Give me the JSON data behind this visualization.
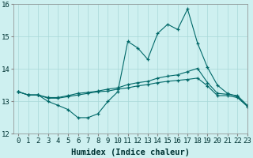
{
  "xlabel": "Humidex (Indice chaleur)",
  "ylabel": "",
  "xlim": [
    -0.5,
    23
  ],
  "ylim": [
    12,
    16
  ],
  "yticks": [
    12,
    13,
    14,
    15,
    16
  ],
  "xticks": [
    0,
    1,
    2,
    3,
    4,
    5,
    6,
    7,
    8,
    9,
    10,
    11,
    12,
    13,
    14,
    15,
    16,
    17,
    18,
    19,
    20,
    21,
    22,
    23
  ],
  "xtick_labels": [
    "0",
    "1",
    "2",
    "3",
    "4",
    "5",
    "6",
    "7",
    "8",
    "9",
    "10",
    "11",
    "12",
    "13",
    "14",
    "15",
    "16",
    "17",
    "18",
    "19",
    "20",
    "21",
    "22",
    "23"
  ],
  "background_color": "#cef0f0",
  "grid_color": "#a8d8d8",
  "line_color": "#006868",
  "line1": [
    13.3,
    13.2,
    13.2,
    13.0,
    12.88,
    12.75,
    12.5,
    12.5,
    12.62,
    13.0,
    13.3,
    14.85,
    14.65,
    14.3,
    15.1,
    15.38,
    15.22,
    15.85,
    14.8,
    14.05,
    13.5,
    13.25,
    13.15,
    12.85
  ],
  "line2": [
    13.3,
    13.2,
    13.2,
    13.12,
    13.12,
    13.18,
    13.25,
    13.28,
    13.32,
    13.38,
    13.42,
    13.52,
    13.58,
    13.62,
    13.72,
    13.78,
    13.82,
    13.92,
    14.02,
    13.58,
    13.25,
    13.22,
    13.18,
    12.88
  ],
  "line3": [
    13.3,
    13.2,
    13.2,
    13.1,
    13.1,
    13.15,
    13.2,
    13.25,
    13.3,
    13.32,
    13.38,
    13.42,
    13.48,
    13.52,
    13.58,
    13.62,
    13.65,
    13.68,
    13.72,
    13.48,
    13.18,
    13.18,
    13.12,
    12.85
  ],
  "xlabel_fontsize": 7.5,
  "tick_fontsize": 6.5
}
